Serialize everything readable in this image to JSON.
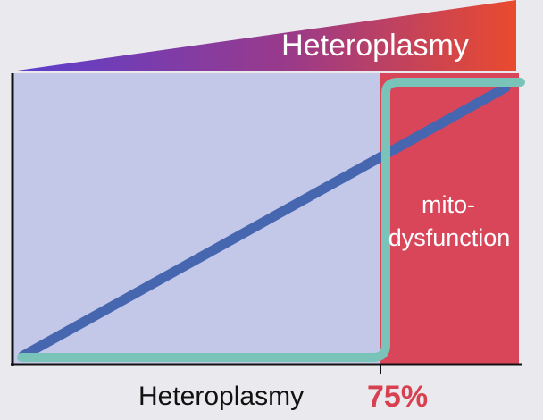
{
  "banner": {
    "label": "Heteroplasmy"
  },
  "regions": {
    "dysfunction_label_line1": "mito-",
    "dysfunction_label_line2": "dysfunction"
  },
  "x_axis": {
    "label": "Heteroplasmy",
    "threshold_label": "75%"
  },
  "colors": {
    "background": "#eaeaee",
    "normal_region": "#c3c8e8",
    "dysfunction_region": "#d9465a",
    "linear_line": "#4766b0",
    "threshold_curve": "#79c3b8",
    "threshold_text": "#d8404f",
    "banner_start": "#5a3fcf",
    "banner_end": "#ea4a2e"
  }
}
